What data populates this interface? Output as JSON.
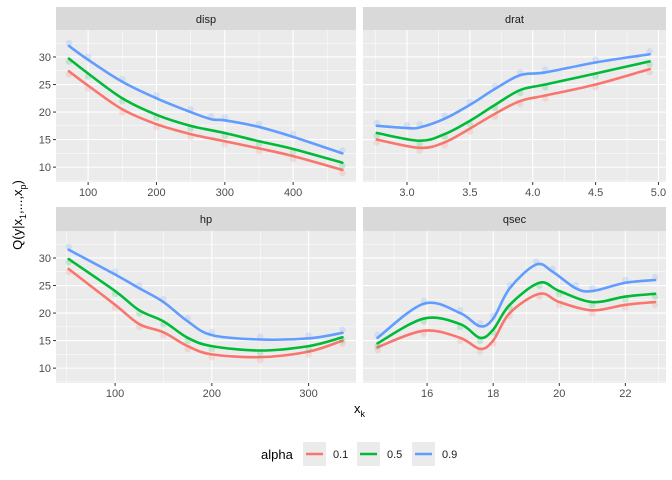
{
  "chart_data": {
    "type": "line",
    "ylabel": "Q(y|x1,...,xp)",
    "ylabel_parts": {
      "main": "Q(y|x",
      "sub1": "1",
      "mid": ",...,x",
      "sub2": "p",
      "end": ")"
    },
    "xlabel": "x",
    "xlabel_sub": "k",
    "grid": true,
    "legend": {
      "title": "alpha",
      "placement": "bottom",
      "entries": [
        "0.1",
        "0.5",
        "0.9"
      ]
    },
    "colors": {
      "0.1": "#F8766D",
      "0.5": "#00BA38",
      "0.9": "#619CFF"
    },
    "shared_y": {
      "ticks": [
        10,
        15,
        20,
        25,
        30
      ],
      "ylim": [
        7.3,
        34.9
      ]
    },
    "facets": [
      {
        "title": "disp",
        "xlim": [
          53,
          492
        ],
        "xticks": [
          100,
          200,
          300,
          400
        ],
        "series": [
          {
            "name": "0.1",
            "x": [
              72,
              100,
              150,
              200,
              250,
              300,
              350,
              400,
              472
            ],
            "y": [
              27.4,
              24.8,
              20.5,
              17.8,
              16.0,
              14.7,
              13.4,
              12.0,
              9.5
            ]
          },
          {
            "name": "0.5",
            "x": [
              72,
              100,
              150,
              200,
              250,
              300,
              350,
              400,
              472
            ],
            "y": [
              29.7,
              27.0,
              22.5,
              19.5,
              17.5,
              16.2,
              14.7,
              13.3,
              10.8
            ]
          },
          {
            "name": "0.9",
            "x": [
              72,
              100,
              150,
              200,
              250,
              280,
              300,
              350,
              400,
              472
            ],
            "y": [
              32.0,
              29.5,
              25.5,
              22.5,
              20.0,
              18.7,
              18.5,
              17.3,
              15.5,
              12.5
            ]
          }
        ]
      },
      {
        "title": "drat",
        "xlim": [
          2.65,
          5.06
        ],
        "xticks": [
          3.0,
          3.5,
          4.0,
          4.5,
          5.0
        ],
        "xtick_labels": [
          "3.0",
          "3.5",
          "4.0",
          "4.5",
          "5.0"
        ],
        "series": [
          {
            "name": "0.1",
            "x": [
              2.76,
              3.1,
              3.3,
              3.5,
              3.7,
              3.9,
              4.1,
              4.5,
              4.93
            ],
            "y": [
              15.0,
              13.5,
              14.5,
              17.0,
              19.7,
              22.0,
              23.0,
              25.0,
              27.8
            ]
          },
          {
            "name": "0.5",
            "x": [
              2.76,
              3.1,
              3.3,
              3.5,
              3.7,
              3.9,
              4.1,
              4.5,
              4.93
            ],
            "y": [
              16.2,
              14.8,
              16.0,
              18.4,
              21.3,
              24.0,
              25.0,
              27.0,
              29.2
            ]
          },
          {
            "name": "0.9",
            "x": [
              2.76,
              3.0,
              3.1,
              3.3,
              3.5,
              3.7,
              3.9,
              4.1,
              4.5,
              4.93
            ],
            "y": [
              17.5,
              17.1,
              17.2,
              18.8,
              21.3,
              24.2,
              26.7,
              27.2,
              29.0,
              30.5
            ]
          }
        ]
      },
      {
        "title": "hp",
        "xlim": [
          38.9,
          349
        ],
        "xticks": [
          100,
          200,
          300
        ],
        "series": [
          {
            "name": "0.1",
            "x": [
              52,
              100,
              125,
              150,
              175,
              200,
              250,
              300,
              335
            ],
            "y": [
              28.0,
              21.5,
              18.0,
              16.5,
              14.0,
              12.5,
              12.0,
              13.0,
              15.0
            ]
          },
          {
            "name": "0.5",
            "x": [
              52,
              100,
              125,
              150,
              175,
              200,
              250,
              300,
              335
            ],
            "y": [
              29.8,
              24.0,
              20.5,
              18.5,
              15.5,
              14.0,
              13.2,
              14.0,
              15.6
            ]
          },
          {
            "name": "0.9",
            "x": [
              52,
              100,
              125,
              150,
              175,
              200,
              250,
              300,
              335
            ],
            "y": [
              31.5,
              27.0,
              24.5,
              22.0,
              18.5,
              16.0,
              15.2,
              15.4,
              16.4
            ]
          }
        ]
      },
      {
        "title": "qsec",
        "xlim": [
          14.06,
          23.23
        ],
        "xticks": [
          16,
          18,
          20,
          22
        ],
        "series": [
          {
            "name": "0.1",
            "x": [
              14.5,
              15.9,
              17.0,
              17.6,
              18.0,
              18.5,
              19.4,
              20.0,
              21.0,
              22.0,
              22.9
            ],
            "y": [
              13.8,
              16.8,
              15.5,
              13.5,
              15.0,
              20.0,
              23.5,
              22.0,
              20.5,
              21.5,
              22.0
            ]
          },
          {
            "name": "0.5",
            "x": [
              14.5,
              15.9,
              17.0,
              17.6,
              18.0,
              18.5,
              19.4,
              20.0,
              21.0,
              22.0,
              22.9
            ],
            "y": [
              14.5,
              19.0,
              18.0,
              15.5,
              17.0,
              21.5,
              25.5,
              24.0,
              22.0,
              23.0,
              23.5
            ]
          },
          {
            "name": "0.9",
            "x": [
              14.5,
              15.9,
              17.0,
              17.6,
              18.0,
              18.5,
              19.3,
              19.8,
              20.5,
              21.0,
              22.0,
              22.9
            ],
            "y": [
              15.5,
              21.7,
              20.0,
              17.6,
              19.0,
              24.5,
              28.8,
              27.5,
              24.5,
              24.0,
              25.5,
              26.0
            ]
          }
        ]
      }
    ]
  }
}
